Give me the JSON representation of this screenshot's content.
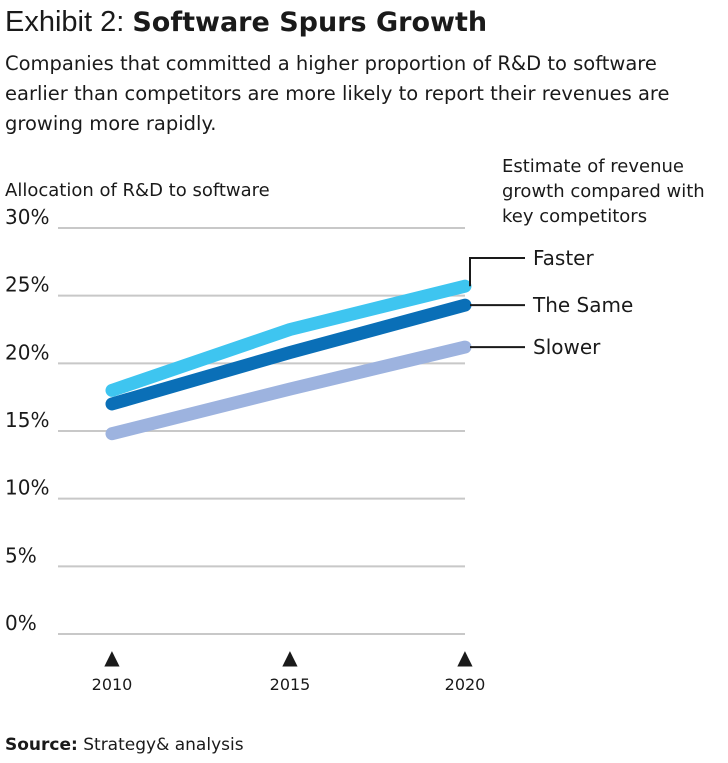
{
  "title": {
    "prefix": "Exhibit 2:",
    "main": "Software Spurs Growth"
  },
  "subtitle": "Companies that committed a higher proportion of R&D to software earlier than competitors are more likely to report their revenues are growing more rapidly.",
  "source": {
    "label": "Source:",
    "text": "Strategy& analysis"
  },
  "colors": {
    "faster": "#3EC5F0",
    "same": "#0A6FB7",
    "slower": "#9DB3DF",
    "grid": "#C8C8C8",
    "text": "#1a1a1a"
  },
  "chart_data": {
    "type": "line",
    "ylabel": "Allocation of R&D to software",
    "legend_title": [
      "Estimate of revenue",
      "growth compared with",
      "key competitors"
    ],
    "x": [
      "2010",
      "2015",
      "2020"
    ],
    "x_markers": "▲",
    "ylim": [
      0,
      30
    ],
    "yticks": [
      0,
      5,
      10,
      15,
      20,
      25,
      30
    ],
    "ytick_labels": [
      "0%",
      "5%",
      "10%",
      "15%",
      "20%",
      "25%",
      "30%"
    ],
    "grid": true,
    "series": [
      {
        "name": "Faster",
        "color_key": "faster",
        "values": [
          18,
          22.5,
          25.7
        ]
      },
      {
        "name": "The Same",
        "color_key": "same",
        "values": [
          17,
          20.8,
          24.3
        ]
      },
      {
        "name": "Slower",
        "color_key": "slower",
        "values": [
          14.8,
          18.1,
          21.2
        ]
      }
    ]
  }
}
